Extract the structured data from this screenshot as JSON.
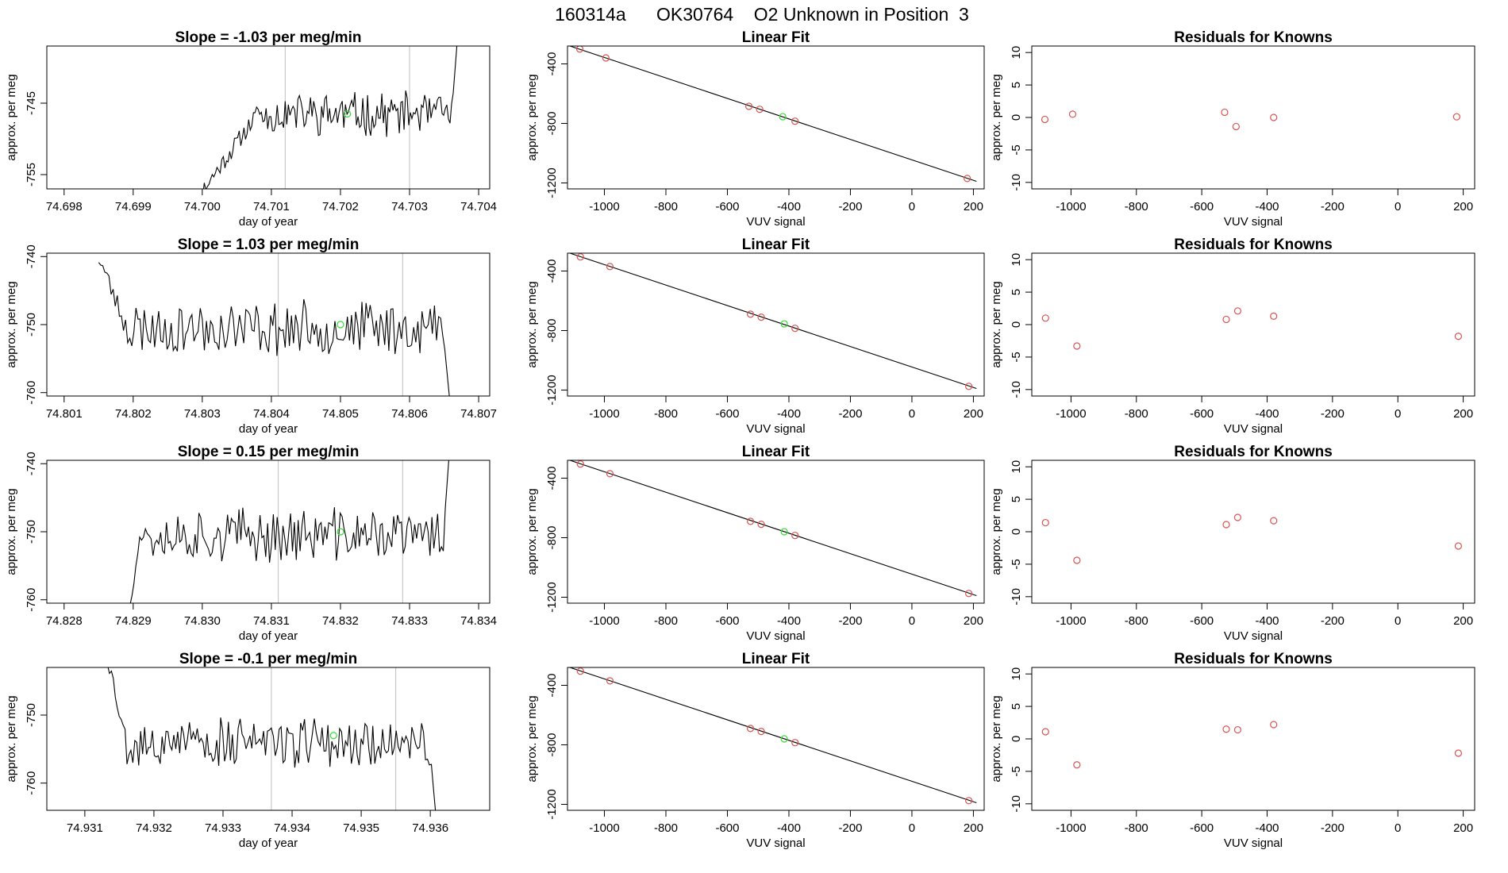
{
  "figure_title": "160314a      OK30764    O2 Unknown in Position  3",
  "colors": {
    "line": "#000000",
    "known_point": "#d9534f",
    "unknown_point": "#33dd33",
    "window_line": "#bfbfbf"
  },
  "chart_data": [
    {
      "type": "line",
      "title": "Slope =  -1.03  per meg/min",
      "xlabel": "day of year",
      "ylabel": "approx. per meg",
      "xlim": [
        74.69775,
        74.70416
      ],
      "ylim": [
        -757,
        -737
      ],
      "xticks": [
        "74.698",
        "74.699",
        "74.700",
        "74.701",
        "74.702",
        "74.703",
        "74.704"
      ],
      "xtick_values": [
        74.698,
        74.699,
        74.7,
        74.701,
        74.702,
        74.703,
        74.704
      ],
      "yticks": [
        "-745",
        "-755"
      ],
      "ytick_values": [
        -745,
        -755
      ],
      "trace": {
        "x_start": 74.6998,
        "x_end": 74.7037,
        "y_start": -760,
        "y_end": -735,
        "level": -746.5,
        "rise_end": 74.7008,
        "noise": 2.6,
        "seed": 11
      },
      "window_lines": [
        74.7012,
        74.703
      ],
      "unknown_point": {
        "x": 74.7021,
        "y": -746.5
      }
    },
    {
      "type": "scatter",
      "title": "Linear Fit",
      "xlabel": "VUV signal",
      "ylabel": "approx. per meg",
      "xlim": [
        -1120,
        235
      ],
      "ylim": [
        -1240,
        -280
      ],
      "xticks": [
        "-1000",
        "-800",
        "-600",
        "-400",
        "-200",
        "0",
        "200"
      ],
      "xtick_values": [
        -1000,
        -800,
        -600,
        -400,
        -200,
        0,
        200
      ],
      "yticks": [
        "-400",
        "-800",
        "-1200"
      ],
      "ytick_values": [
        -400,
        -800,
        -1200
      ],
      "knowns": [
        {
          "x": -1080,
          "y": -300
        },
        {
          "x": -995,
          "y": -360
        },
        {
          "x": -530,
          "y": -685
        },
        {
          "x": -495,
          "y": -705
        },
        {
          "x": -380,
          "y": -785
        },
        {
          "x": 180,
          "y": -1170
        }
      ],
      "unknown_point": {
        "x": -420,
        "y": -755
      },
      "fit": {
        "slope": -0.688,
        "intercept": -1045
      }
    },
    {
      "type": "scatter",
      "title": "Residuals for Knowns",
      "xlabel": "VUV signal",
      "ylabel": "approx. per meg",
      "xlim": [
        -1120,
        235
      ],
      "ylim": [
        -11,
        11
      ],
      "xticks": [
        "-1000",
        "-800",
        "-600",
        "-400",
        "-200",
        "0",
        "200"
      ],
      "xtick_values": [
        -1000,
        -800,
        -600,
        -400,
        -200,
        0,
        200
      ],
      "yticks": [
        "-10",
        "-5",
        "0",
        "5",
        "10"
      ],
      "ytick_values": [
        -10,
        -5,
        0,
        5,
        10
      ],
      "residuals": [
        {
          "x": -1080,
          "y": -0.3
        },
        {
          "x": -995,
          "y": 0.5
        },
        {
          "x": -530,
          "y": 0.8
        },
        {
          "x": -495,
          "y": -1.4
        },
        {
          "x": -380,
          "y": 0.0
        },
        {
          "x": 180,
          "y": 0.1
        }
      ]
    },
    {
      "type": "line",
      "title": "Slope =  1.03  per meg/min",
      "xlabel": "day of year",
      "ylabel": "approx. per meg",
      "xlim": [
        74.80075,
        74.80716
      ],
      "ylim": [
        -760.5,
        -739.5
      ],
      "xticks": [
        "74.801",
        "74.802",
        "74.803",
        "74.804",
        "74.805",
        "74.806",
        "74.807"
      ],
      "xtick_values": [
        74.801,
        74.802,
        74.803,
        74.804,
        74.805,
        74.806,
        74.807
      ],
      "yticks": [
        "-740",
        "-750",
        "-760"
      ],
      "ytick_values": [
        -740,
        -750,
        -760
      ],
      "trace": {
        "x_start": 74.8015,
        "x_end": 74.8066,
        "y_start": -740,
        "y_end": -763,
        "level": -750.5,
        "rise_end": 74.8019,
        "noise": 3.4,
        "seed": 23
      },
      "window_lines": [
        74.8041,
        74.8059
      ],
      "unknown_point": {
        "x": 74.805,
        "y": -750
      }
    },
    {
      "type": "scatter",
      "title": "Linear Fit",
      "xlabel": "VUV signal",
      "ylabel": "approx. per meg",
      "xlim": [
        -1120,
        235
      ],
      "ylim": [
        -1240,
        -280
      ],
      "xticks": [
        "-1000",
        "-800",
        "-600",
        "-400",
        "-200",
        "0",
        "200"
      ],
      "xtick_values": [
        -1000,
        -800,
        -600,
        -400,
        -200,
        0,
        200
      ],
      "yticks": [
        "-400",
        "-800",
        "-1200"
      ],
      "ytick_values": [
        -400,
        -800,
        -1200
      ],
      "knowns": [
        {
          "x": -1078,
          "y": -305
        },
        {
          "x": -982,
          "y": -370
        },
        {
          "x": -525,
          "y": -690
        },
        {
          "x": -490,
          "y": -710
        },
        {
          "x": -380,
          "y": -785
        },
        {
          "x": 185,
          "y": -1175
        }
      ],
      "unknown_point": {
        "x": -415,
        "y": -755
      },
      "fit": {
        "slope": -0.688,
        "intercept": -1045
      }
    },
    {
      "type": "scatter",
      "title": "Residuals for Knowns",
      "xlabel": "VUV signal",
      "ylabel": "approx. per meg",
      "xlim": [
        -1120,
        235
      ],
      "ylim": [
        -11,
        11
      ],
      "xticks": [
        "-1000",
        "-800",
        "-600",
        "-400",
        "-200",
        "0",
        "200"
      ],
      "xtick_values": [
        -1000,
        -800,
        -600,
        -400,
        -200,
        0,
        200
      ],
      "yticks": [
        "-10",
        "-5",
        "0",
        "5",
        "10"
      ],
      "ytick_values": [
        -10,
        -5,
        0,
        5,
        10
      ],
      "residuals": [
        {
          "x": -1078,
          "y": 1.0
        },
        {
          "x": -982,
          "y": -3.3
        },
        {
          "x": -525,
          "y": 0.8
        },
        {
          "x": -490,
          "y": 2.1
        },
        {
          "x": -380,
          "y": 1.3
        },
        {
          "x": 185,
          "y": -1.8
        }
      ]
    },
    {
      "type": "line",
      "title": "Slope =  0.15  per meg/min",
      "xlabel": "day of year",
      "ylabel": "approx. per meg",
      "xlim": [
        74.82775,
        74.83416
      ],
      "ylim": [
        -760.5,
        -739.5
      ],
      "xticks": [
        "74.828",
        "74.829",
        "74.830",
        "74.831",
        "74.832",
        "74.833",
        "74.834"
      ],
      "xtick_values": [
        74.828,
        74.829,
        74.83,
        74.831,
        74.832,
        74.833,
        74.834
      ],
      "yticks": [
        "-740",
        "-750",
        "-760"
      ],
      "ytick_values": [
        -740,
        -750,
        -760
      ],
      "trace": {
        "x_start": 74.8289,
        "x_end": 74.8336,
        "y_start": -763,
        "y_end": -735,
        "level": -750.5,
        "rise_end": 74.8291,
        "noise": 3.4,
        "seed": 37
      },
      "window_lines": [
        74.8311,
        74.8329
      ],
      "unknown_point": {
        "x": 74.832,
        "y": -750
      }
    },
    {
      "type": "scatter",
      "title": "Linear Fit",
      "xlabel": "VUV signal",
      "ylabel": "approx. per meg",
      "xlim": [
        -1120,
        235
      ],
      "ylim": [
        -1240,
        -280
      ],
      "xticks": [
        "-1000",
        "-800",
        "-600",
        "-400",
        "-200",
        "0",
        "200"
      ],
      "xtick_values": [
        -1000,
        -800,
        -600,
        -400,
        -200,
        0,
        200
      ],
      "yticks": [
        "-400",
        "-800",
        "-1200"
      ],
      "ytick_values": [
        -400,
        -800,
        -1200
      ],
      "knowns": [
        {
          "x": -1078,
          "y": -305
        },
        {
          "x": -982,
          "y": -370
        },
        {
          "x": -525,
          "y": -690
        },
        {
          "x": -490,
          "y": -710
        },
        {
          "x": -380,
          "y": -785
        },
        {
          "x": 185,
          "y": -1175
        }
      ],
      "unknown_point": {
        "x": -415,
        "y": -760
      },
      "fit": {
        "slope": -0.688,
        "intercept": -1045
      }
    },
    {
      "type": "scatter",
      "title": "Residuals for Knowns",
      "xlabel": "VUV signal",
      "ylabel": "approx. per meg",
      "xlim": [
        -1120,
        235
      ],
      "ylim": [
        -11,
        11
      ],
      "xticks": [
        "-1000",
        "-800",
        "-600",
        "-400",
        "-200",
        "0",
        "200"
      ],
      "xtick_values": [
        -1000,
        -800,
        -600,
        -400,
        -200,
        0,
        200
      ],
      "yticks": [
        "-10",
        "-5",
        "0",
        "5",
        "10"
      ],
      "ytick_values": [
        -10,
        -5,
        0,
        5,
        10
      ],
      "residuals": [
        {
          "x": -1078,
          "y": 1.4
        },
        {
          "x": -982,
          "y": -4.4
        },
        {
          "x": -525,
          "y": 1.1
        },
        {
          "x": -490,
          "y": 2.2
        },
        {
          "x": -380,
          "y": 1.7
        },
        {
          "x": 185,
          "y": -2.2
        }
      ]
    },
    {
      "type": "line",
      "title": "Slope =  -0.1  per meg/min",
      "xlabel": "day of year",
      "ylabel": "approx. per meg",
      "xlim": [
        74.93045,
        74.93686
      ],
      "ylim": [
        -764,
        -743
      ],
      "xticks": [
        "74.931",
        "74.932",
        "74.933",
        "74.934",
        "74.935",
        "74.936"
      ],
      "xtick_values": [
        74.931,
        74.932,
        74.933,
        74.934,
        74.935,
        74.936
      ],
      "yticks": [
        "-750",
        "-760"
      ],
      "ytick_values": [
        -750,
        -760
      ],
      "trace": {
        "x_start": 74.9313,
        "x_end": 74.9361,
        "y_start": -740,
        "y_end": -767,
        "level": -754,
        "rise_end": 74.9316,
        "noise": 3.2,
        "seed": 53
      },
      "window_lines": [
        74.9337,
        74.9355
      ],
      "unknown_point": {
        "x": 74.9346,
        "y": -753
      }
    },
    {
      "type": "scatter",
      "title": "Linear Fit",
      "xlabel": "VUV signal",
      "ylabel": "approx. per meg",
      "xlim": [
        -1120,
        235
      ],
      "ylim": [
        -1240,
        -280
      ],
      "xticks": [
        "-1000",
        "-800",
        "-600",
        "-400",
        "-200",
        "0",
        "200"
      ],
      "xtick_values": [
        -1000,
        -800,
        -600,
        -400,
        -200,
        0,
        200
      ],
      "yticks": [
        "-400",
        "-800",
        "-1200"
      ],
      "ytick_values": [
        -400,
        -800,
        -1200
      ],
      "knowns": [
        {
          "x": -1078,
          "y": -305
        },
        {
          "x": -982,
          "y": -370
        },
        {
          "x": -525,
          "y": -690
        },
        {
          "x": -490,
          "y": -710
        },
        {
          "x": -380,
          "y": -785
        },
        {
          "x": 185,
          "y": -1175
        }
      ],
      "unknown_point": {
        "x": -415,
        "y": -760
      },
      "fit": {
        "slope": -0.688,
        "intercept": -1045
      }
    },
    {
      "type": "scatter",
      "title": "Residuals for Knowns",
      "xlabel": "VUV signal",
      "ylabel": "approx. per meg",
      "xlim": [
        -1120,
        235
      ],
      "ylim": [
        -11,
        11
      ],
      "xticks": [
        "-1000",
        "-800",
        "-600",
        "-400",
        "-200",
        "0",
        "200"
      ],
      "xtick_values": [
        -1000,
        -800,
        -600,
        -400,
        -200,
        0,
        200
      ],
      "yticks": [
        "-10",
        "-5",
        "0",
        "5",
        "10"
      ],
      "ytick_values": [
        -10,
        -5,
        0,
        5,
        10
      ],
      "residuals": [
        {
          "x": -1078,
          "y": 1.1
        },
        {
          "x": -982,
          "y": -4.0
        },
        {
          "x": -525,
          "y": 1.5
        },
        {
          "x": -490,
          "y": 1.4
        },
        {
          "x": -380,
          "y": 2.2
        },
        {
          "x": 185,
          "y": -2.2
        }
      ]
    }
  ]
}
